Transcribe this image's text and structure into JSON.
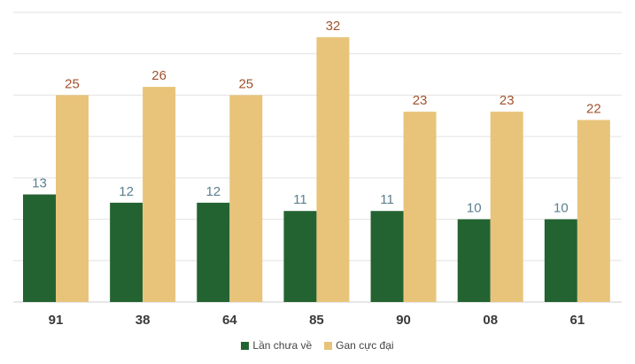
{
  "chart_data": {
    "type": "bar",
    "categories": [
      "91",
      "38",
      "64",
      "85",
      "90",
      "08",
      "61"
    ],
    "series": [
      {
        "name": "Lần chưa về",
        "values": [
          13,
          12,
          12,
          11,
          11,
          10,
          10
        ],
        "color": "#236331",
        "label_color": "#5b7f8f"
      },
      {
        "name": "Gan cực đại",
        "values": [
          25,
          26,
          25,
          32,
          23,
          23,
          22
        ],
        "color": "#e8c47a",
        "label_color": "#a0522d"
      }
    ],
    "ylim": [
      0,
      35
    ],
    "grid": true,
    "legend_position": "bottom"
  }
}
